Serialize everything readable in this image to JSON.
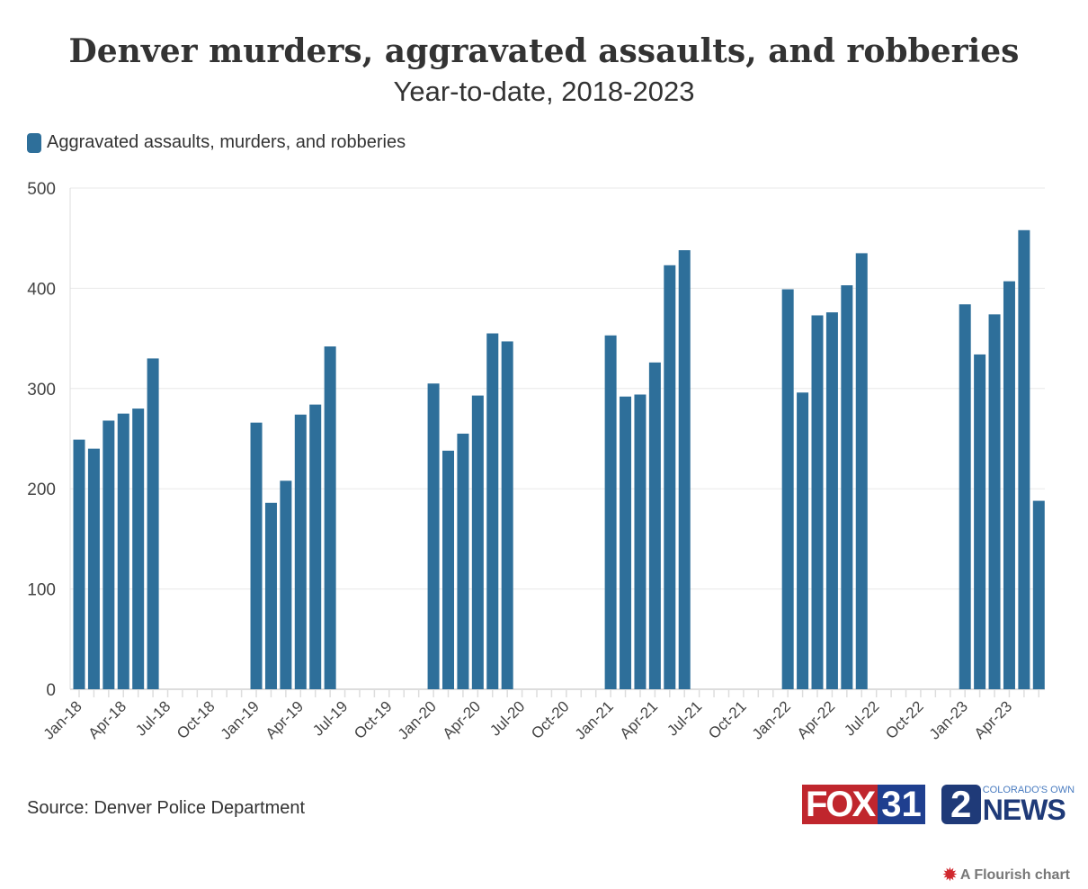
{
  "chart_data": {
    "type": "bar",
    "title": "Denver murders, aggravated assaults, and robberies",
    "subtitle": "Year-to-date, 2018-2023",
    "xlabel": "",
    "ylabel": "",
    "ylim": [
      0,
      500
    ],
    "yticks": [
      0,
      100,
      200,
      300,
      400,
      500
    ],
    "grid": true,
    "legend_placement": "top-left",
    "color": "#2e6f9a",
    "xtick_labels": [
      "Jan-18",
      "Apr-18",
      "Jul-18",
      "Oct-18",
      "Jan-19",
      "Apr-19",
      "Jul-19",
      "Oct-19",
      "Jan-20",
      "Apr-20",
      "Jul-20",
      "Oct-20",
      "Jan-21",
      "Apr-21",
      "Jul-21",
      "Oct-21",
      "Jan-22",
      "Apr-22",
      "Jul-22",
      "Oct-22",
      "Jan-23",
      "Apr-23"
    ],
    "x_range": [
      "Jan-18",
      "Jun-23"
    ],
    "series": [
      {
        "name": "Aggravated assaults, murders, and robberies",
        "points": [
          {
            "x": "Jan-18",
            "y": 249
          },
          {
            "x": "Feb-18",
            "y": 240
          },
          {
            "x": "Mar-18",
            "y": 268
          },
          {
            "x": "Apr-18",
            "y": 275
          },
          {
            "x": "May-18",
            "y": 280
          },
          {
            "x": "Jun-18",
            "y": 330
          },
          {
            "x": "Jan-19",
            "y": 266
          },
          {
            "x": "Feb-19",
            "y": 186
          },
          {
            "x": "Mar-19",
            "y": 208
          },
          {
            "x": "Apr-19",
            "y": 274
          },
          {
            "x": "May-19",
            "y": 284
          },
          {
            "x": "Jun-19",
            "y": 342
          },
          {
            "x": "Jan-20",
            "y": 305
          },
          {
            "x": "Feb-20",
            "y": 238
          },
          {
            "x": "Mar-20",
            "y": 255
          },
          {
            "x": "Apr-20",
            "y": 293
          },
          {
            "x": "May-20",
            "y": 355
          },
          {
            "x": "Jun-20",
            "y": 347
          },
          {
            "x": "Jan-21",
            "y": 353
          },
          {
            "x": "Feb-21",
            "y": 292
          },
          {
            "x": "Mar-21",
            "y": 294
          },
          {
            "x": "Apr-21",
            "y": 326
          },
          {
            "x": "May-21",
            "y": 423
          },
          {
            "x": "Jun-21",
            "y": 438
          },
          {
            "x": "Jan-22",
            "y": 399
          },
          {
            "x": "Feb-22",
            "y": 296
          },
          {
            "x": "Mar-22",
            "y": 373
          },
          {
            "x": "Apr-22",
            "y": 376
          },
          {
            "x": "May-22",
            "y": 403
          },
          {
            "x": "Jun-22",
            "y": 435
          },
          {
            "x": "Jan-23",
            "y": 384
          },
          {
            "x": "Feb-23",
            "y": 334
          },
          {
            "x": "Mar-23",
            "y": 374
          },
          {
            "x": "Apr-23",
            "y": 407
          },
          {
            "x": "May-23",
            "y": 458
          },
          {
            "x": "Jun-23",
            "y": 188
          }
        ]
      }
    ]
  },
  "source": "Source: Denver Police Department",
  "logos": {
    "fox": "FOX",
    "fox_num": "31",
    "news_num": "2",
    "news_tag": "COLORADO'S OWN",
    "news": "NEWS"
  },
  "credit": "A Flourish chart"
}
